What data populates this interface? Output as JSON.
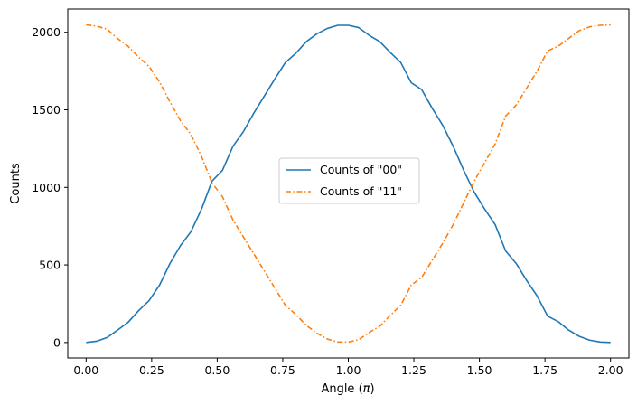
{
  "chart_data": {
    "type": "line",
    "title": "",
    "xlabel": "Angle (",
    "xlabel_symbol": "π",
    "xlabel_close": ")",
    "ylabel": "Counts",
    "xlim": [
      -0.07,
      2.07
    ],
    "ylim": [
      -100,
      2150
    ],
    "xticks": [
      0.0,
      0.25,
      0.5,
      0.75,
      1.0,
      1.25,
      1.5,
      1.75,
      2.0
    ],
    "xtick_labels": [
      "0.00",
      "0.25",
      "0.50",
      "0.75",
      "1.00",
      "1.25",
      "1.50",
      "1.75",
      "2.00"
    ],
    "yticks": [
      0,
      500,
      1000,
      1500,
      2000
    ],
    "ytick_labels": [
      "0",
      "500",
      "1000",
      "1500",
      "2000"
    ],
    "grid": false,
    "legend_position": "center",
    "x": [
      0.0,
      0.04,
      0.08,
      0.12,
      0.16,
      0.2,
      0.24,
      0.28,
      0.32,
      0.36,
      0.4,
      0.44,
      0.48,
      0.52,
      0.56,
      0.6,
      0.64,
      0.68,
      0.72,
      0.76,
      0.8,
      0.84,
      0.88,
      0.92,
      0.96,
      1.0,
      1.04,
      1.08,
      1.12,
      1.16,
      1.2,
      1.24,
      1.28,
      1.32,
      1.36,
      1.4,
      1.44,
      1.48,
      1.52,
      1.56,
      1.6,
      1.64,
      1.68,
      1.72,
      1.76,
      1.8,
      1.84,
      1.88,
      1.92,
      1.96,
      2.0
    ],
    "series": [
      {
        "name": "Counts of \"00\"",
        "color": "#1f77b4",
        "style": "solid",
        "values": [
          0,
          8,
          32,
          80,
          130,
          205,
          270,
          370,
          510,
          625,
          715,
          860,
          1040,
          1110,
          1265,
          1360,
          1480,
          1590,
          1700,
          1805,
          1865,
          1940,
          1990,
          2025,
          2045,
          2045,
          2030,
          1980,
          1940,
          1870,
          1805,
          1675,
          1630,
          1510,
          1400,
          1265,
          1110,
          970,
          860,
          760,
          590,
          510,
          400,
          300,
          170,
          135,
          80,
          40,
          15,
          3,
          0
        ]
      },
      {
        "name": "Counts of \"11\"",
        "color": "#ff7f0e",
        "style": "dashdot",
        "values": [
          2048,
          2040,
          2020,
          1960,
          1910,
          1840,
          1780,
          1680,
          1550,
          1430,
          1340,
          1200,
          1030,
          940,
          790,
          680,
          570,
          460,
          350,
          240,
          180,
          110,
          60,
          22,
          3,
          3,
          18,
          65,
          105,
          175,
          240,
          370,
          420,
          530,
          640,
          760,
          900,
          1040,
          1160,
          1280,
          1460,
          1530,
          1640,
          1750,
          1880,
          1910,
          1960,
          2010,
          2035,
          2045,
          2048
        ]
      }
    ]
  }
}
